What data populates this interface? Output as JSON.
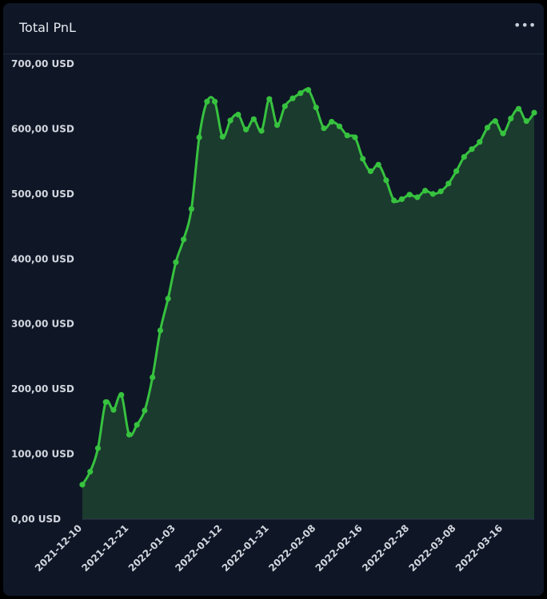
{
  "header": {
    "title": "Total PnL",
    "menu_icon": "more-dots-icon"
  },
  "colors": {
    "line": "#37c23f",
    "area": "#1b3b2e",
    "background": "#0f1727",
    "grid": "#2a3446"
  },
  "chart_data": {
    "type": "area",
    "title": "Total PnL",
    "xlabel": "",
    "ylabel": "",
    "ylim": [
      0,
      700
    ],
    "y_ticks": [
      0,
      100,
      200,
      300,
      400,
      500,
      600,
      700
    ],
    "y_tick_labels": [
      "0,00 USD",
      "100,00 USD",
      "200,00 USD",
      "300,00 USD",
      "400,00 USD",
      "500,00 USD",
      "600,00 USD",
      "700,00 USD"
    ],
    "x_tick_labels": [
      "2021-12-10",
      "2021-12-21",
      "2022-01-03",
      "2022-01-12",
      "2022-01-31",
      "2022-02-08",
      "2022-02-16",
      "2022-02-28",
      "2022-03-08",
      "2022-03-16"
    ],
    "x_tick_indices": [
      0,
      6,
      12,
      18,
      24,
      30,
      36,
      42,
      48,
      54
    ],
    "grid": false,
    "legend": "none",
    "series": [
      {
        "values": [
          53,
          73,
          109,
          180,
          168,
          191,
          130,
          145,
          167,
          218,
          290,
          339,
          395,
          430,
          477,
          587,
          642,
          642,
          588,
          613,
          622,
          599,
          615,
          597,
          646,
          606,
          635,
          647,
          655,
          660,
          633,
          601,
          611,
          604,
          590,
          587,
          554,
          535,
          545,
          521,
          490,
          492,
          499,
          495,
          505,
          500,
          504,
          516,
          535,
          557,
          569,
          580,
          602,
          612,
          593,
          616,
          631,
          612,
          625
        ]
      }
    ]
  }
}
